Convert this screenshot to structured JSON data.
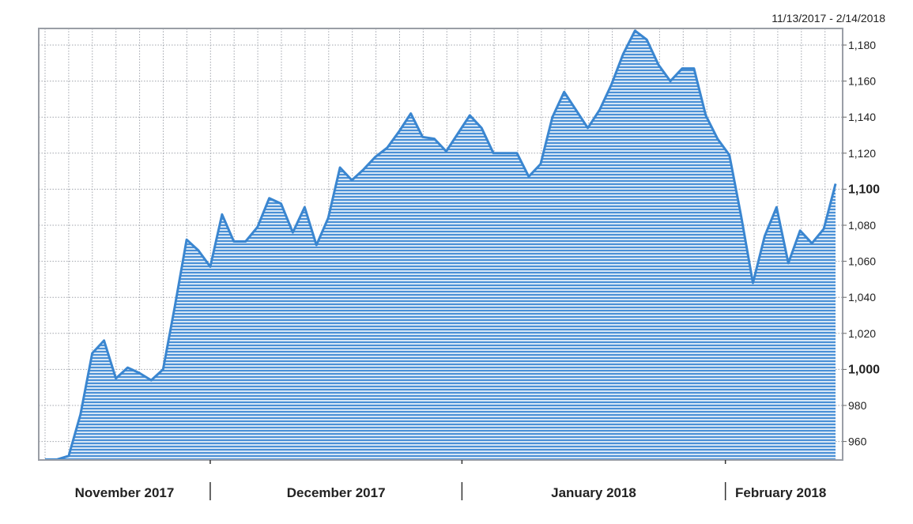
{
  "chart_data": {
    "type": "area",
    "title": "",
    "date_range": "11/13/2017 - 2/14/2018",
    "xlabel": "",
    "ylabel": "",
    "ylim": [
      950,
      1190
    ],
    "grid": true,
    "y_ticks": [
      "960",
      "980",
      "1,000",
      "1,020",
      "1,040",
      "1,060",
      "1,080",
      "1,100",
      "1,120",
      "1,140",
      "1,160",
      "1,180"
    ],
    "y_tick_values": [
      960,
      980,
      1000,
      1020,
      1040,
      1060,
      1080,
      1100,
      1120,
      1140,
      1160,
      1180
    ],
    "y_bold_ticks": [
      1000,
      1100
    ],
    "months": [
      "November 2017",
      "December 2017",
      "January 2018",
      "February 2018"
    ],
    "month_boundaries_index": [
      14,
      35,
      58
    ],
    "values": [
      950,
      950,
      952,
      975,
      1009,
      1016,
      995,
      1001,
      998,
      994,
      1000,
      1035,
      1072,
      1066,
      1057,
      1086,
      1071,
      1071,
      1079,
      1095,
      1092,
      1076,
      1090,
      1069,
      1084,
      1112,
      1105,
      1111,
      1118,
      1123,
      1132,
      1142,
      1129,
      1128,
      1121,
      1131,
      1141,
      1134,
      1120,
      1120,
      1120,
      1107,
      1114,
      1140,
      1154,
      1144,
      1134,
      1144,
      1158,
      1175,
      1188,
      1183,
      1169,
      1160,
      1167,
      1167,
      1141,
      1128,
      1119,
      1085,
      1048,
      1074,
      1090,
      1059,
      1077,
      1070,
      1078,
      1103
    ],
    "colors": {
      "line": "#3a86d0",
      "fill_stripe": "#4a90d6",
      "fill_bg": "#d6e6f5",
      "grid": "#a0a4ac"
    }
  }
}
